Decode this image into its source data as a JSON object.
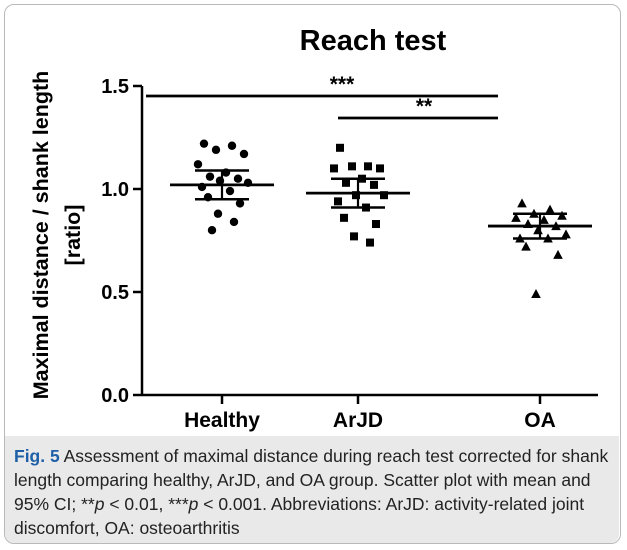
{
  "chart_data": {
    "type": "scatter",
    "title": "Reach test",
    "ylabel_line1": "Maximal distance / shank length",
    "ylabel_line2": "[ratio]",
    "categories": [
      "Healthy",
      "ArJD",
      "OA"
    ],
    "ylim": [
      0.0,
      1.5
    ],
    "yticks": [
      0.0,
      0.5,
      1.0,
      1.5
    ],
    "ytick_labels": [
      "0.0",
      "0.5",
      "1.0",
      "1.5"
    ],
    "grid": false,
    "series": [
      {
        "category": "Healthy",
        "marker": "circle",
        "values": [
          1.22,
          1.21,
          1.19,
          1.17,
          1.12,
          1.08,
          1.06,
          1.05,
          1.04,
          1.03,
          1.01,
          0.99,
          0.96,
          0.93,
          0.88,
          0.84,
          0.8
        ],
        "mean": 1.02,
        "ci_low": 0.95,
        "ci_high": 1.09
      },
      {
        "category": "ArJD",
        "marker": "square",
        "values": [
          1.2,
          1.11,
          1.11,
          1.1,
          1.1,
          1.05,
          1.03,
          1.02,
          0.97,
          0.97,
          0.94,
          0.91,
          0.86,
          0.83,
          0.77,
          0.74
        ],
        "mean": 0.98,
        "ci_low": 0.91,
        "ci_high": 1.05
      },
      {
        "category": "OA",
        "marker": "triangle",
        "values": [
          0.93,
          0.9,
          0.88,
          0.87,
          0.86,
          0.85,
          0.83,
          0.82,
          0.8,
          0.78,
          0.76,
          0.76,
          0.72,
          0.68,
          0.49
        ],
        "mean": 0.82,
        "ci_low": 0.76,
        "ci_high": 0.88
      }
    ],
    "significance": [
      {
        "from": "Healthy",
        "to": "OA",
        "label": "***"
      },
      {
        "from": "ArJD",
        "to": "OA",
        "label": "**"
      }
    ],
    "colors": {
      "marks": "#000000"
    }
  },
  "caption": {
    "fig_label": "Fig. 5",
    "text_1": " Assessment of maximal distance during reach test corrected for shank length comparing healthy, ArJD, and OA group. Scatter plot with mean and 95% CI; **",
    "p1": "p",
    "text_2": " < 0.01, ***",
    "p2": "p",
    "text_3": " < 0.001. Abbreviations: ArJD: activity-related joint discomfort, OA: osteoarthritis"
  }
}
